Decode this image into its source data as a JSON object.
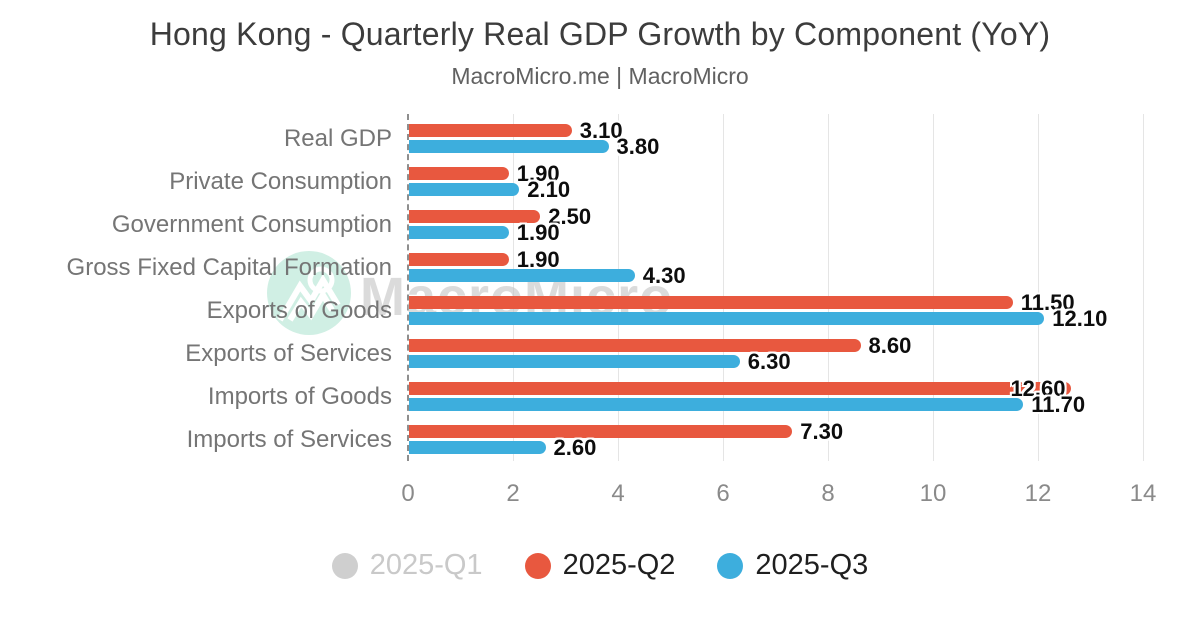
{
  "watermark": {
    "text": "MacroMicro",
    "logo": "macromicro-mountain-logo",
    "circle_color": "#cdeee2"
  },
  "chart_data": {
    "type": "bar",
    "orientation": "horizontal",
    "title": "Hong Kong - Quarterly Real GDP Growth by Component (YoY)",
    "subtitle": "MacroMicro.me | MacroMicro",
    "categories": [
      "Real GDP",
      "Private Consumption",
      "Government Consumption",
      "Gross Fixed Capital Formation",
      "Exports of Goods",
      "Exports of Services",
      "Imports of Goods",
      "Imports of Services"
    ],
    "series": [
      {
        "name": "2025-Q1",
        "color": "#cfcfcf",
        "visible": false,
        "values": []
      },
      {
        "name": "2025-Q2",
        "color": "#e8583f",
        "visible": true,
        "values": [
          3.1,
          1.9,
          2.5,
          1.9,
          11.5,
          8.6,
          12.6,
          7.3
        ]
      },
      {
        "name": "2025-Q3",
        "color": "#3daedd",
        "visible": true,
        "values": [
          3.8,
          2.1,
          1.9,
          4.3,
          12.1,
          6.3,
          11.7,
          2.6
        ]
      }
    ],
    "xlabel": "",
    "ylabel": "",
    "xlim": [
      0,
      14.2
    ],
    "xticks": [
      0,
      2,
      4,
      6,
      8,
      10,
      12,
      14
    ],
    "grid": true,
    "zero_line": "dashed",
    "legend_position": "bottom",
    "value_label_decimals": 2,
    "colors": {
      "grid": "#e5e5e5",
      "zero_line": "#8e8e8e",
      "category_label": "#757575",
      "tick_label": "#8a8a8a",
      "value_label": "#0d0d0d",
      "muted_legend_text": "#c9c9c9"
    }
  }
}
